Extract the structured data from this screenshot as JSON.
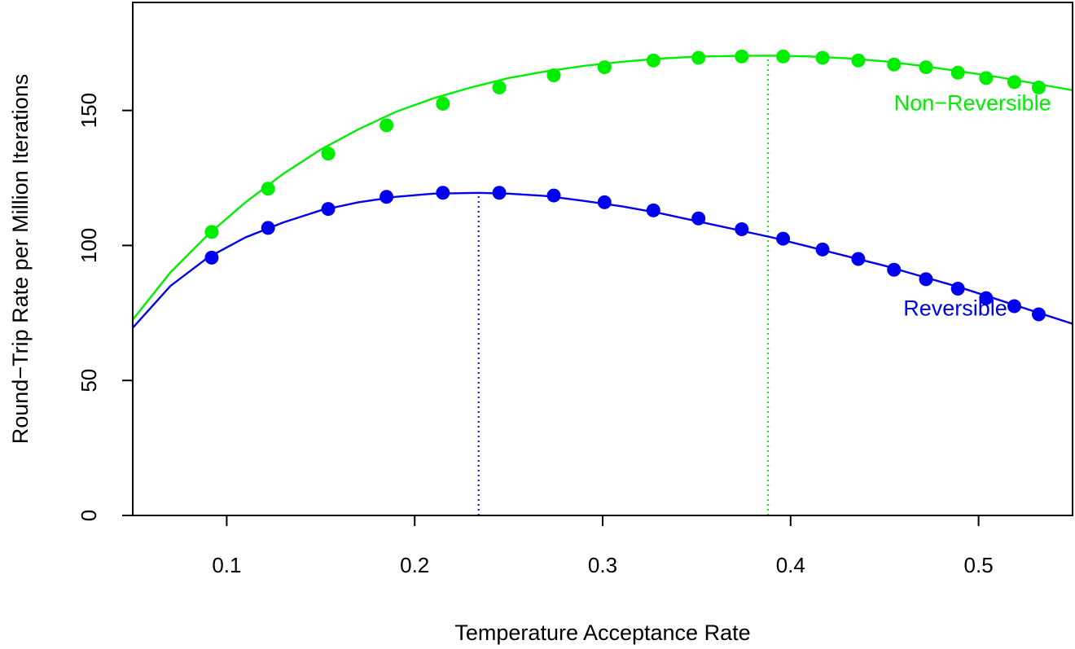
{
  "chart_data": {
    "type": "scatter",
    "xlabel": "Temperature Acceptance Rate",
    "ylabel": "Round−Trip Rate per Million Iterations",
    "xlim": [
      0.05,
      0.55
    ],
    "ylim": [
      0,
      190
    ],
    "x_ticks": [
      0.1,
      0.2,
      0.3,
      0.4,
      0.5
    ],
    "x_tick_labels": [
      "0.1",
      "0.2",
      "0.3",
      "0.4",
      "0.5"
    ],
    "y_ticks": [
      0,
      50,
      100,
      150
    ],
    "y_tick_labels": [
      "0",
      "50",
      "100",
      "150"
    ],
    "grid": false,
    "legend": "none",
    "series": [
      {
        "name": "Non−Reversible",
        "color": "#00ee00",
        "x": [
          0.092,
          0.122,
          0.154,
          0.185,
          0.215,
          0.245,
          0.274,
          0.301,
          0.327,
          0.351,
          0.374,
          0.396,
          0.417,
          0.436,
          0.455,
          0.472,
          0.489,
          0.504,
          0.519,
          0.532
        ],
        "y": [
          105,
          121,
          134,
          144.5,
          152.5,
          158.5,
          163,
          166,
          168.5,
          169.5,
          170,
          170,
          169.5,
          168.5,
          167,
          166,
          164,
          162,
          160.5,
          158.5
        ],
        "curve_x": [
          0.05,
          0.07,
          0.09,
          0.11,
          0.13,
          0.15,
          0.17,
          0.19,
          0.21,
          0.23,
          0.25,
          0.27,
          0.29,
          0.31,
          0.33,
          0.35,
          0.37,
          0.388,
          0.41,
          0.43,
          0.45,
          0.47,
          0.49,
          0.51,
          0.53,
          0.55
        ],
        "curve_y": [
          72.5,
          90,
          104,
          116,
          126.5,
          135.5,
          143,
          149.5,
          154.5,
          158.5,
          162,
          164.5,
          166.5,
          168,
          169.2,
          169.9,
          170.2,
          170.3,
          170,
          169.3,
          168.2,
          166.5,
          164.5,
          162.4,
          160,
          157.5
        ],
        "optimum_x": 0.388,
        "optimum_y": 170.3
      },
      {
        "name": "Reversible",
        "color": "#0000ee",
        "x": [
          0.092,
          0.122,
          0.154,
          0.185,
          0.215,
          0.245,
          0.274,
          0.301,
          0.327,
          0.351,
          0.374,
          0.396,
          0.417,
          0.436,
          0.455,
          0.472,
          0.489,
          0.504,
          0.519,
          0.532
        ],
        "y": [
          95.5,
          106.5,
          113.5,
          118,
          119.5,
          119.5,
          118.5,
          116,
          113,
          110,
          106,
          102.5,
          98.5,
          95,
          91,
          87.5,
          84,
          80.5,
          77.5,
          74.5
        ],
        "curve_x": [
          0.05,
          0.07,
          0.09,
          0.11,
          0.13,
          0.15,
          0.17,
          0.19,
          0.21,
          0.234,
          0.25,
          0.27,
          0.29,
          0.31,
          0.33,
          0.35,
          0.37,
          0.39,
          0.41,
          0.43,
          0.45,
          0.47,
          0.49,
          0.51,
          0.53,
          0.55
        ],
        "curve_y": [
          69.5,
          85,
          95.5,
          103,
          108.5,
          113,
          116,
          118,
          119.2,
          119.5,
          119.2,
          118.3,
          116.5,
          114.5,
          112,
          109,
          106,
          103,
          99.5,
          96,
          92.5,
          88.5,
          84.5,
          80,
          75.5,
          71
        ],
        "optimum_x": 0.234,
        "optimum_y": 119.5
      }
    ],
    "annotations": [
      {
        "text": "Non−Reversible",
        "series": 0,
        "x": 0.455,
        "y": 150
      },
      {
        "text": "Reversible",
        "series": 1,
        "x": 0.46,
        "y": 74
      }
    ]
  }
}
